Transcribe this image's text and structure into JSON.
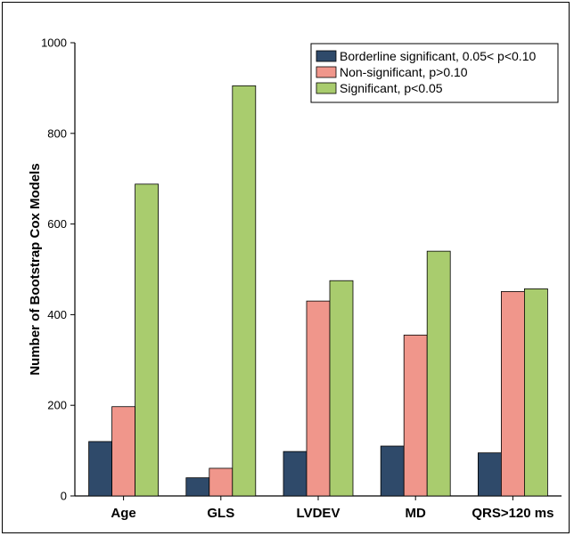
{
  "chart_data": {
    "type": "bar",
    "title": "",
    "xlabel": "",
    "ylabel": "Number of Bootstrap Cox Models",
    "ylim": [
      0,
      1000
    ],
    "yticks": [
      0,
      200,
      400,
      600,
      800,
      1000
    ],
    "categories": [
      "Age",
      "GLS",
      "LVDEV",
      "MD",
      "QRS>120 ms"
    ],
    "series": [
      {
        "name": "Borderline significant, 0.05< p<0.10",
        "color": "#2f4a6a",
        "values": [
          120,
          40,
          98,
          110,
          95
        ]
      },
      {
        "name": "Non-significant, p>0.10",
        "color": "#f0968b",
        "values": [
          197,
          61,
          430,
          355,
          451
        ]
      },
      {
        "name": "Significant, p<0.05",
        "color": "#a9cc6e",
        "values": [
          688,
          905,
          475,
          540,
          457
        ]
      }
    ],
    "grid": false,
    "legend_position": "top-right"
  }
}
